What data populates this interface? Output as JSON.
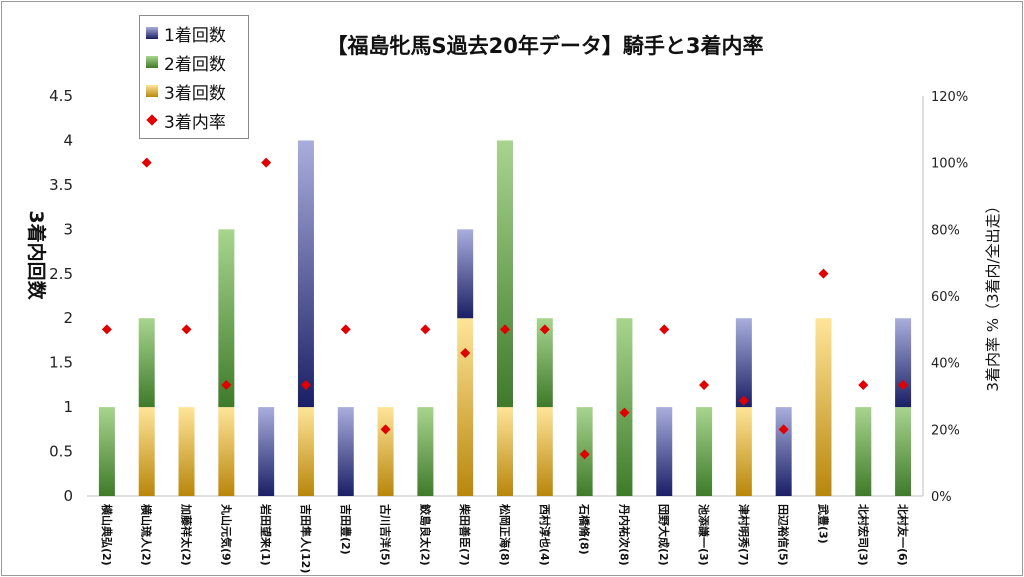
{
  "chart_data": {
    "type": "bar",
    "title": "【福島牝馬S過去20年データ】騎手と3着内率",
    "ylabel": "3着内回数",
    "y2label": "3着内率 %（3着内/全出走）",
    "ylim": [
      0,
      4.5
    ],
    "y2lim": [
      0,
      120
    ],
    "yticks": [
      "0",
      "0.5",
      "1",
      "1.5",
      "2",
      "2.5",
      "3",
      "3.5",
      "4",
      "4.5"
    ],
    "y2ticks": [
      "0%",
      "20%",
      "40%",
      "60%",
      "80%",
      "100%",
      "120%"
    ],
    "legend_position": "top-left",
    "categories": [
      "横山典弘(2)",
      "横山琉人(2)",
      "加藤祥太(2)",
      "丸山元気(9)",
      "岩田望来(1)",
      "吉田隼人(12)",
      "吉田豊(2)",
      "古川吉洋(5)",
      "鮫島良太(2)",
      "柴田善臣(7)",
      "松岡正海(8)",
      "西村淳也(4)",
      "石橋脩(8)",
      "丹内祐次(8)",
      "団野大成(2)",
      "池添謙一(3)",
      "津村明秀(7)",
      "田辺裕信(5)",
      "武豊(3)",
      "北村宏司(3)",
      "北村友一(6)"
    ],
    "series": [
      {
        "name": "3着回数",
        "values": [
          0,
          1,
          1,
          1,
          0,
          1,
          0,
          1,
          0,
          2,
          1,
          1,
          0,
          0,
          0,
          0,
          1,
          0,
          2,
          0,
          0
        ]
      },
      {
        "name": "2着回数",
        "values": [
          1,
          1,
          0,
          2,
          0,
          0,
          0,
          0,
          1,
          0,
          3,
          1,
          1,
          2,
          0,
          1,
          0,
          0,
          0,
          1,
          1
        ]
      },
      {
        "name": "1着回数",
        "values": [
          0,
          0,
          0,
          0,
          1,
          3,
          1,
          0,
          0,
          1,
          0,
          0,
          0,
          0,
          1,
          0,
          1,
          1,
          0,
          0,
          1
        ]
      },
      {
        "name": "3着内率",
        "axis": "right",
        "values": [
          50,
          100,
          50,
          33.3,
          100,
          33.3,
          50,
          20,
          50,
          42.9,
          50,
          50,
          12.5,
          25,
          50,
          33.3,
          28.6,
          20,
          66.7,
          33.3,
          33.3
        ]
      }
    ]
  },
  "legend": {
    "items": [
      "1着回数",
      "2着回数",
      "3着回数",
      "3着内率"
    ]
  },
  "colors": {
    "win_top": "#a9aedc",
    "win_bottom": "#1a1f66",
    "second_top": "#a8d58e",
    "second_bottom": "#3f7a2a",
    "third_top": "#ffe599",
    "third_bottom": "#b8860b",
    "rate": "#e00000"
  }
}
